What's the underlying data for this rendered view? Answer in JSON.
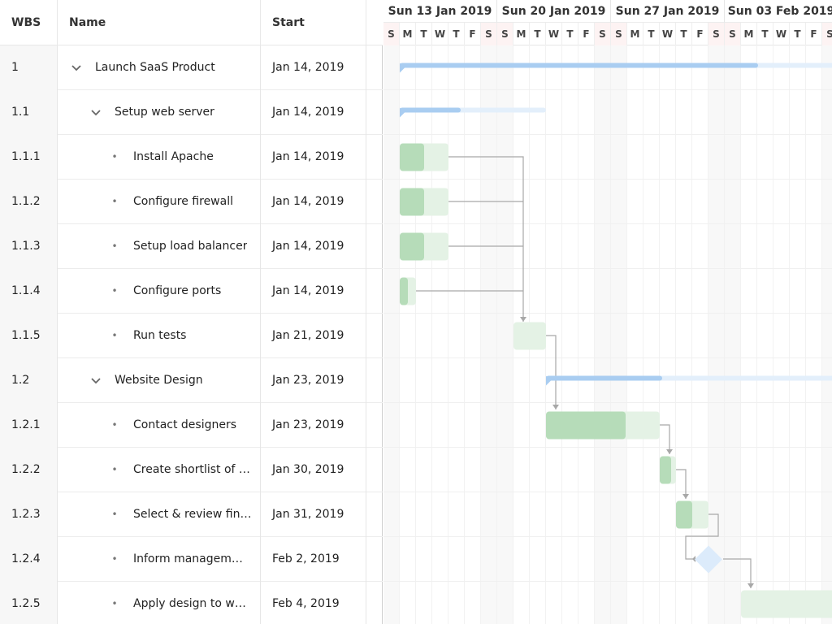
{
  "columns": {
    "wbs": "WBS",
    "name": "Name",
    "start": "Start"
  },
  "weeks": [
    "Sun 13 Jan 2019",
    "Sun 20 Jan 2019",
    "Sun 27 Jan 2019",
    "Sun 03 Feb 2019"
  ],
  "day_letters": [
    "S",
    "M",
    "T",
    "W",
    "T",
    "F",
    "S"
  ],
  "colors": {
    "parent_bar": "#a9cdf1",
    "parent_bar_light": "#e3effb",
    "task_done": "#b6dcb9",
    "task_todo": "#e4f2e5",
    "milestone": "#dcebfb",
    "dependency": "#a8a8a8"
  },
  "tasks": [
    {
      "wbs": "1",
      "name": "Launch SaaS Product",
      "start": "Jan 14, 2019",
      "level": 0,
      "kind": "parent",
      "expanded": true
    },
    {
      "wbs": "1.1",
      "name": "Setup web server",
      "start": "Jan 14, 2019",
      "level": 1,
      "kind": "parent",
      "expanded": true
    },
    {
      "wbs": "1.1.1",
      "name": "Install Apache",
      "start": "Jan 14, 2019",
      "level": 2,
      "kind": "task"
    },
    {
      "wbs": "1.1.2",
      "name": "Configure firewall",
      "start": "Jan 14, 2019",
      "level": 2,
      "kind": "task"
    },
    {
      "wbs": "1.1.3",
      "name": "Setup load balancer",
      "start": "Jan 14, 2019",
      "level": 2,
      "kind": "task"
    },
    {
      "wbs": "1.1.4",
      "name": "Configure ports",
      "start": "Jan 14, 2019",
      "level": 2,
      "kind": "task"
    },
    {
      "wbs": "1.1.5",
      "name": "Run tests",
      "start": "Jan 21, 2019",
      "level": 2,
      "kind": "task"
    },
    {
      "wbs": "1.2",
      "name": "Website Design",
      "start": "Jan 23, 2019",
      "level": 1,
      "kind": "parent",
      "expanded": true
    },
    {
      "wbs": "1.2.1",
      "name": "Contact designers",
      "start": "Jan 23, 2019",
      "level": 2,
      "kind": "task"
    },
    {
      "wbs": "1.2.2",
      "name": "Create shortlist of t…",
      "start": "Jan 30, 2019",
      "level": 2,
      "kind": "task"
    },
    {
      "wbs": "1.2.3",
      "name": "Select & review fin…",
      "start": "Jan 31, 2019",
      "level": 2,
      "kind": "task"
    },
    {
      "wbs": "1.2.4",
      "name": "Inform managem…",
      "start": "Feb 2, 2019",
      "level": 2,
      "kind": "milestone"
    },
    {
      "wbs": "1.2.5",
      "name": "Apply design to w…",
      "start": "Feb 4, 2019",
      "level": 2,
      "kind": "task"
    }
  ]
}
